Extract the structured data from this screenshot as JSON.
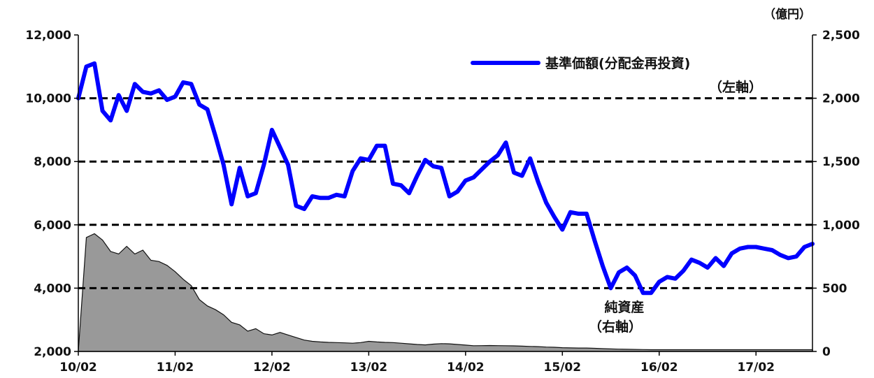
{
  "chart_data": {
    "type": "line",
    "title": "",
    "unit_label": "（億円）",
    "x_ticks": [
      "10/02",
      "11/02",
      "12/02",
      "13/02",
      "14/02",
      "15/02",
      "16/02",
      "17/02"
    ],
    "x_range_months": [
      0,
      91
    ],
    "left_axis": {
      "ticks": [
        "2,000",
        "4,000",
        "6,000",
        "8,000",
        "10,000",
        "12,000"
      ],
      "min": 2000,
      "max": 12000
    },
    "right_axis": {
      "ticks": [
        "0",
        "500",
        "1,000",
        "1,500",
        "2,000",
        "2,500"
      ],
      "min": 0,
      "max": 2500
    },
    "dashed_gridlines_left": [
      4000,
      6000,
      8000,
      10000
    ],
    "legend": {
      "label": "基準価額(分配金再投資)",
      "sub": "（左軸）",
      "placement": "top-right"
    },
    "area_annotation": {
      "label": "純資産",
      "sub": "（右軸）"
    },
    "series": [
      {
        "name": "基準価額(分配金再投資)",
        "axis": "left",
        "style": "line",
        "color": "#0000ff",
        "x": [
          0,
          1,
          2,
          3,
          4,
          5,
          6,
          7,
          8,
          9,
          10,
          11,
          12,
          13,
          14,
          15,
          16,
          17,
          18,
          19,
          20,
          21,
          22,
          23,
          24,
          25,
          26,
          27,
          28,
          29,
          30,
          31,
          32,
          33,
          34,
          35,
          36,
          37,
          38,
          39,
          40,
          41,
          42,
          43,
          44,
          45,
          46,
          47,
          48,
          49,
          50,
          51,
          52,
          53,
          54,
          55,
          56,
          57,
          58,
          59,
          60,
          61,
          62,
          63,
          64,
          65,
          66,
          67,
          68,
          69,
          70,
          71,
          72,
          73,
          74,
          75,
          76,
          77,
          78,
          79,
          80,
          81,
          82,
          83,
          84,
          85,
          86,
          87,
          88,
          89,
          90,
          91
        ],
        "values": [
          10000,
          11000,
          11100,
          9600,
          9300,
          10100,
          9600,
          10450,
          10200,
          10150,
          10250,
          9950,
          10050,
          10500,
          10450,
          9800,
          9650,
          8800,
          7900,
          6650,
          7800,
          6900,
          7000,
          7900,
          9000,
          8450,
          7900,
          6600,
          6500,
          6900,
          6850,
          6850,
          6950,
          6900,
          7700,
          8100,
          8050,
          8500,
          8500,
          7300,
          7250,
          7000,
          7550,
          8050,
          7850,
          7800,
          6900,
          7050,
          7400,
          7500,
          7750,
          8000,
          8200,
          8600,
          7650,
          7550,
          8100,
          7350,
          6700,
          6250,
          5850,
          6400,
          6350,
          6350,
          5500,
          4700,
          4000,
          4500,
          4650,
          4400,
          3850,
          3850,
          4200,
          4350,
          4300,
          4550,
          4900,
          4800,
          4650,
          4950,
          4700,
          5100,
          5250,
          5300,
          5300,
          5250,
          5200,
          5050,
          4950,
          5000,
          5300,
          5400
        ]
      },
      {
        "name": "純資産",
        "axis": "right",
        "style": "area",
        "color": "#999999",
        "x": [
          0,
          1,
          2,
          3,
          4,
          5,
          6,
          7,
          8,
          9,
          10,
          11,
          12,
          13,
          14,
          15,
          16,
          17,
          18,
          19,
          20,
          21,
          22,
          23,
          24,
          25,
          26,
          27,
          28,
          29,
          30,
          31,
          32,
          33,
          34,
          35,
          36,
          37,
          38,
          39,
          40,
          41,
          42,
          43,
          44,
          45,
          46,
          47,
          48,
          49,
          50,
          51,
          52,
          53,
          54,
          55,
          56,
          57,
          58,
          59,
          60,
          61,
          62,
          63,
          64,
          65,
          66,
          67,
          68,
          69,
          70,
          71,
          72,
          73,
          74,
          75,
          76,
          77,
          78,
          79,
          80,
          81,
          82,
          83,
          84,
          85,
          86,
          87,
          88,
          89,
          90,
          91
        ],
        "values": [
          0,
          900,
          930,
          880,
          790,
          770,
          830,
          770,
          800,
          720,
          710,
          680,
          630,
          570,
          520,
          410,
          360,
          330,
          290,
          230,
          210,
          160,
          180,
          140,
          130,
          150,
          130,
          110,
          90,
          80,
          75,
          72,
          70,
          68,
          65,
          70,
          80,
          75,
          72,
          70,
          65,
          60,
          55,
          52,
          58,
          62,
          60,
          55,
          50,
          45,
          46,
          47,
          46,
          45,
          44,
          42,
          40,
          38,
          35,
          33,
          30,
          28,
          27,
          27,
          25,
          22,
          20,
          18,
          17,
          16,
          15,
          14,
          14,
          14,
          14,
          14,
          14,
          14,
          14,
          14,
          14,
          14,
          14,
          14,
          14,
          14,
          14,
          14,
          14,
          14,
          14,
          14
        ]
      }
    ],
    "grid": "dashed horizontal at left-axis 4,000 / 6,000 / 8,000 / 10,000"
  }
}
